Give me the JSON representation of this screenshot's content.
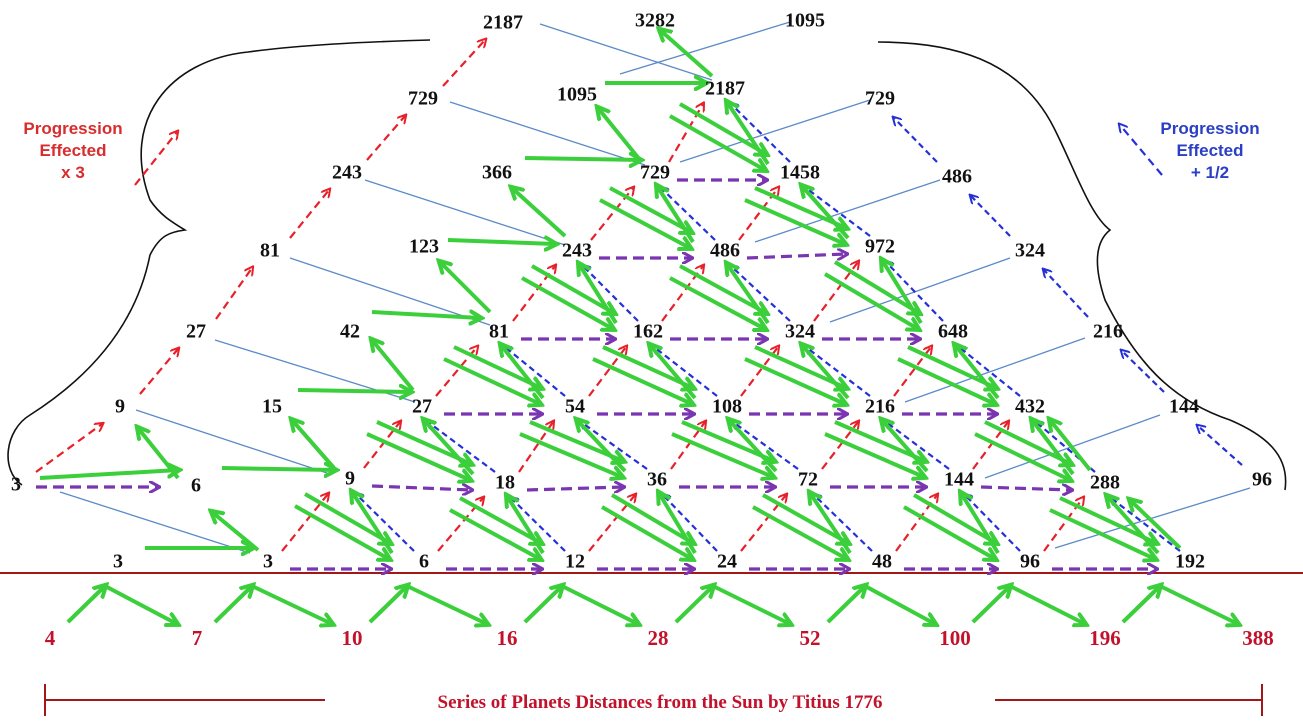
{
  "legend": {
    "left": [
      "Progression",
      "Effected",
      "x 3"
    ],
    "right": [
      "Progression",
      "Effected",
      "+ 1/2"
    ]
  },
  "caption": "Series of Planets Distances from the Sun by Titius 1776",
  "colors": {
    "red_arrow": "#e8202a",
    "blue_arrow": "#2530d8",
    "purple_arrow": "#7a35b0",
    "green_arrow": "#3ccf3c",
    "thin_line": "#5b8ac9",
    "baseline": "#a01818",
    "bottom_numbers": "#c2122b",
    "node_numbers": "#111111"
  },
  "nodes": {
    "row0": [
      "3",
      "3",
      "6",
      "12",
      "24",
      "48",
      "96",
      "192"
    ],
    "row1": [
      "3",
      "6",
      "9",
      "18",
      "36",
      "72",
      "144",
      "288",
      "96"
    ],
    "row2": [
      "9",
      "15",
      "27",
      "54",
      "108",
      "216",
      "432",
      "144"
    ],
    "row3": [
      "27",
      "42",
      "81",
      "162",
      "324",
      "648",
      "216"
    ],
    "row4": [
      "81",
      "123",
      "243",
      "486",
      "972",
      "324"
    ],
    "row5": [
      "243",
      "366",
      "729",
      "1458",
      "486"
    ],
    "row6": [
      "729",
      "1095",
      "2187",
      "729"
    ],
    "row7": [
      "2187",
      "3282",
      "1095"
    ]
  },
  "bottom_series": [
    "4",
    "7",
    "10",
    "16",
    "28",
    "52",
    "100",
    "196",
    "388"
  ]
}
